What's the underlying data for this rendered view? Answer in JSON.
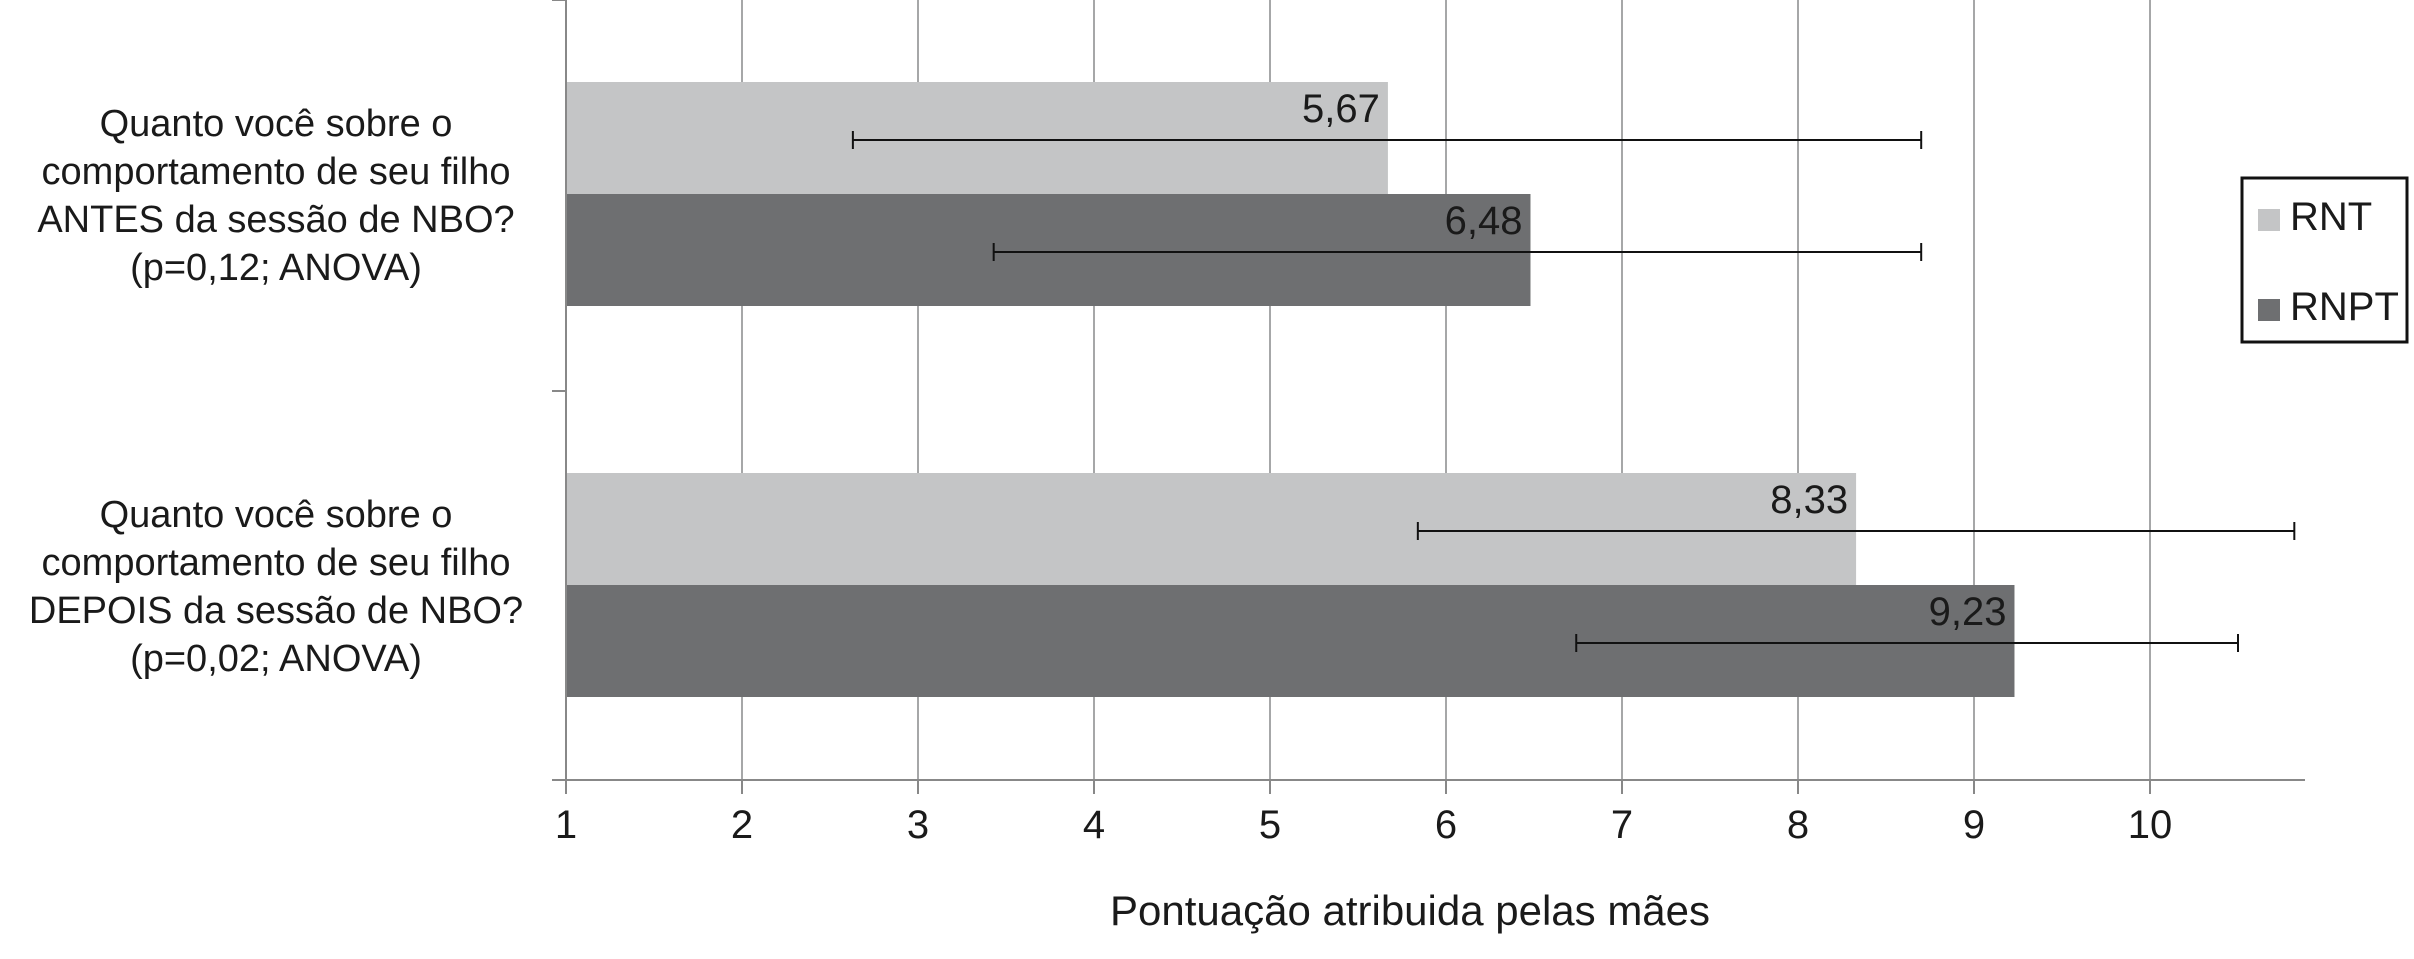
{
  "chart_data": {
    "type": "bar",
    "orientation": "horizontal",
    "categories": [
      [
        "Quanto você sobre o",
        "comportamento de seu filho",
        "ANTES da sessão de NBO?",
        "(p=0,12; ANOVA)"
      ],
      [
        "Quanto você sobre o",
        "comportamento de seu filho",
        "DEPOIS da sessão de NBO?",
        "(p=0,02; ANOVA)"
      ]
    ],
    "series": [
      {
        "name": "RNT",
        "values": [
          5.67,
          8.33
        ],
        "value_labels": [
          "5,67",
          "8,33"
        ],
        "error_low": [
          2.63,
          5.84
        ],
        "error_high": [
          8.7,
          10.82
        ],
        "color": "#c4c5c6"
      },
      {
        "name": "RNPT",
        "values": [
          6.48,
          9.23
        ],
        "value_labels": [
          "6,48",
          "9,23"
        ],
        "error_low": [
          3.43,
          6.74
        ],
        "error_high": [
          8.7,
          10.5
        ],
        "color": "#6e6f71"
      }
    ],
    "xlabel": "Pontuação atribuida pelas mães",
    "xlim": [
      1,
      10.9
    ],
    "xticks": [
      1,
      2,
      3,
      4,
      5,
      6,
      7,
      8,
      9,
      10
    ],
    "grid": true,
    "legend_position": "right"
  }
}
